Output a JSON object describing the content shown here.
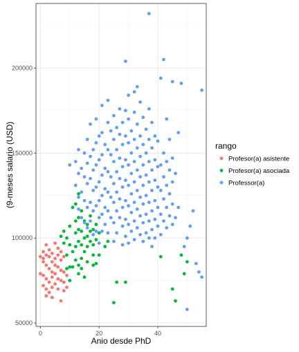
{
  "chart_data": {
    "type": "scatter",
    "title": "",
    "xlabel": "Anio desde PhD",
    "ylabel": "(9-meses salario (USD)",
    "xlim": [
      -1.5,
      56.5
    ],
    "ylim": [
      48000,
      238000
    ],
    "x_ticks": [
      0,
      20,
      40
    ],
    "y_ticks": [
      50000,
      100000,
      150000,
      200000
    ],
    "y_tick_labels": [
      "50000",
      "100000",
      "150000",
      "200000"
    ],
    "grid": true,
    "legend_title": "rango",
    "legend_position": "right",
    "series": [
      {
        "name": "Profesor(a) asistente",
        "color": "#F8766D",
        "points": [
          [
            0,
            79000
          ],
          [
            0,
            89000
          ],
          [
            1,
            92000
          ],
          [
            1,
            88000
          ],
          [
            1,
            86000
          ],
          [
            1,
            78000
          ],
          [
            1,
            72000
          ],
          [
            2,
            96000
          ],
          [
            2,
            90000
          ],
          [
            2,
            84000
          ],
          [
            2,
            76000
          ],
          [
            2,
            70000
          ],
          [
            2,
            66000
          ],
          [
            3,
            93000
          ],
          [
            3,
            89000
          ],
          [
            3,
            82000
          ],
          [
            3,
            74000
          ],
          [
            3,
            68000
          ],
          [
            4,
            91000
          ],
          [
            4,
            86000
          ],
          [
            4,
            80000
          ],
          [
            4,
            77000
          ],
          [
            4,
            71000
          ],
          [
            4,
            65000
          ],
          [
            5,
            97000
          ],
          [
            5,
            88000
          ],
          [
            5,
            84000
          ],
          [
            5,
            79000
          ],
          [
            5,
            73000
          ],
          [
            6,
            94000
          ],
          [
            6,
            90000
          ],
          [
            6,
            83000
          ],
          [
            6,
            76000
          ],
          [
            6,
            70000
          ],
          [
            7,
            92000
          ],
          [
            7,
            87000
          ],
          [
            7,
            81000
          ],
          [
            7,
            75000
          ],
          [
            7,
            63000
          ],
          [
            8,
            89000
          ],
          [
            8,
            80000
          ],
          [
            8,
            74000
          ],
          [
            8,
            69000
          ],
          [
            9,
            78000
          ],
          [
            9,
            71000
          ]
        ]
      },
      {
        "name": "Profesor(a) asociada",
        "color": "#00BA38",
        "points": [
          [
            7,
            101000
          ],
          [
            8,
            104000
          ],
          [
            8,
            97000
          ],
          [
            9,
            100000
          ],
          [
            9,
            90000
          ],
          [
            9,
            82000
          ],
          [
            10,
            107000
          ],
          [
            10,
            96000
          ],
          [
            10,
            83000
          ],
          [
            10,
            75000
          ],
          [
            11,
            118000
          ],
          [
            11,
            92000
          ],
          [
            11,
            83000
          ],
          [
            12,
            120000
          ],
          [
            12,
            110000
          ],
          [
            12,
            103000
          ],
          [
            12,
            95000
          ],
          [
            12,
            87000
          ],
          [
            13,
            126000
          ],
          [
            13,
            112000
          ],
          [
            13,
            105000
          ],
          [
            13,
            98000
          ],
          [
            13,
            84000
          ],
          [
            13,
            79000
          ],
          [
            14,
            116000
          ],
          [
            14,
            104000
          ],
          [
            14,
            96000
          ],
          [
            14,
            88000
          ],
          [
            14,
            82000
          ],
          [
            15,
            110000
          ],
          [
            15,
            100000
          ],
          [
            15,
            92000
          ],
          [
            15,
            77000
          ],
          [
            16,
            108000
          ],
          [
            16,
            101000
          ],
          [
            16,
            95000
          ],
          [
            16,
            86000
          ],
          [
            17,
            113000
          ],
          [
            17,
            104000
          ],
          [
            17,
            98000
          ],
          [
            18,
            105000
          ],
          [
            18,
            96000
          ],
          [
            18,
            90000
          ],
          [
            18,
            84000
          ],
          [
            19,
            108000
          ],
          [
            19,
            99000
          ],
          [
            19,
            85000
          ],
          [
            20,
            103000
          ],
          [
            20,
            90000
          ],
          [
            22,
            95000
          ],
          [
            23,
            98000
          ],
          [
            25,
            62000
          ],
          [
            26,
            74000
          ],
          [
            29,
            74000
          ],
          [
            41,
            89000
          ],
          [
            45,
            70000
          ],
          [
            46,
            63000
          ],
          [
            48,
            90000
          ],
          [
            49,
            79000
          ],
          [
            50,
            86000
          ]
        ]
      },
      {
        "name": "Professor(a)",
        "color": "#619CFF",
        "points": [
          [
            10,
            143000
          ],
          [
            12,
            145000
          ],
          [
            12,
            131000
          ],
          [
            13,
            152000
          ],
          [
            13,
            138000
          ],
          [
            13,
            124000
          ],
          [
            13,
            117000
          ],
          [
            14,
            141000
          ],
          [
            14,
            127000
          ],
          [
            14,
            112000
          ],
          [
            15,
            150000
          ],
          [
            15,
            136000
          ],
          [
            15,
            122000
          ],
          [
            15,
            109000
          ],
          [
            16,
            158000
          ],
          [
            16,
            144000
          ],
          [
            16,
            132000
          ],
          [
            16,
            118000
          ],
          [
            16,
            106000
          ],
          [
            17,
            167000
          ],
          [
            17,
            148000
          ],
          [
            17,
            135000
          ],
          [
            17,
            121000
          ],
          [
            17,
            110000
          ],
          [
            18,
            152000
          ],
          [
            18,
            140000
          ],
          [
            18,
            128000
          ],
          [
            18,
            116000
          ],
          [
            18,
            102000
          ],
          [
            19,
            170000
          ],
          [
            19,
            156000
          ],
          [
            19,
            143000
          ],
          [
            19,
            130000
          ],
          [
            19,
            119000
          ],
          [
            19,
            104000
          ],
          [
            20,
            160000
          ],
          [
            20,
            146000
          ],
          [
            20,
            133000
          ],
          [
            20,
            122000
          ],
          [
            20,
            112000
          ],
          [
            20,
            97000
          ],
          [
            21,
            178000
          ],
          [
            21,
            162000
          ],
          [
            21,
            149000
          ],
          [
            21,
            137000
          ],
          [
            21,
            125000
          ],
          [
            21,
            114000
          ],
          [
            21,
            104000
          ],
          [
            22,
            155000
          ],
          [
            22,
            141000
          ],
          [
            22,
            129000
          ],
          [
            22,
            118000
          ],
          [
            22,
            108000
          ],
          [
            23,
            181000
          ],
          [
            23,
            168000
          ],
          [
            23,
            152000
          ],
          [
            23,
            139000
          ],
          [
            23,
            127000
          ],
          [
            23,
            116000
          ],
          [
            23,
            103000
          ],
          [
            24,
            163000
          ],
          [
            24,
            149000
          ],
          [
            24,
            136000
          ],
          [
            24,
            124000
          ],
          [
            24,
            112000
          ],
          [
            25,
            172000
          ],
          [
            25,
            158000
          ],
          [
            25,
            145000
          ],
          [
            25,
            132000
          ],
          [
            25,
            121000
          ],
          [
            25,
            109000
          ],
          [
            25,
            98000
          ],
          [
            26,
            165000
          ],
          [
            26,
            152000
          ],
          [
            26,
            139000
          ],
          [
            26,
            127000
          ],
          [
            26,
            116000
          ],
          [
            26,
            103000
          ],
          [
            27,
            176000
          ],
          [
            27,
            161000
          ],
          [
            27,
            147000
          ],
          [
            27,
            135000
          ],
          [
            27,
            123000
          ],
          [
            27,
            112000
          ],
          [
            28,
            168000
          ],
          [
            28,
            155000
          ],
          [
            28,
            142000
          ],
          [
            28,
            130000
          ],
          [
            28,
            118000
          ],
          [
            28,
            107000
          ],
          [
            28,
            96000
          ],
          [
            29,
            204000
          ],
          [
            29,
            175000
          ],
          [
            29,
            160000
          ],
          [
            29,
            146000
          ],
          [
            29,
            134000
          ],
          [
            29,
            122000
          ],
          [
            29,
            111000
          ],
          [
            29,
            101000
          ],
          [
            30,
            184000
          ],
          [
            30,
            170000
          ],
          [
            30,
            156000
          ],
          [
            30,
            143000
          ],
          [
            30,
            131000
          ],
          [
            30,
            119000
          ],
          [
            30,
            108000
          ],
          [
            30,
            97000
          ],
          [
            31,
            163000
          ],
          [
            31,
            150000
          ],
          [
            31,
            138000
          ],
          [
            31,
            126000
          ],
          [
            31,
            115000
          ],
          [
            31,
            104000
          ],
          [
            32,
            186000
          ],
          [
            32,
            174000
          ],
          [
            32,
            158000
          ],
          [
            32,
            145000
          ],
          [
            32,
            133000
          ],
          [
            32,
            121000
          ],
          [
            32,
            110000
          ],
          [
            32,
            99000
          ],
          [
            33,
            189000
          ],
          [
            33,
            167000
          ],
          [
            33,
            153000
          ],
          [
            33,
            140000
          ],
          [
            33,
            128000
          ],
          [
            33,
            117000
          ],
          [
            33,
            106000
          ],
          [
            34,
            180000
          ],
          [
            34,
            160000
          ],
          [
            34,
            148000
          ],
          [
            34,
            136000
          ],
          [
            34,
            124000
          ],
          [
            34,
            113000
          ],
          [
            34,
            102000
          ],
          [
            35,
            171000
          ],
          [
            35,
            155000
          ],
          [
            35,
            143000
          ],
          [
            35,
            131000
          ],
          [
            35,
            120000
          ],
          [
            35,
            109000
          ],
          [
            35,
            98000
          ],
          [
            36,
            164000
          ],
          [
            36,
            150000
          ],
          [
            36,
            137000
          ],
          [
            36,
            125000
          ],
          [
            36,
            114000
          ],
          [
            36,
            103000
          ],
          [
            37,
            232000
          ],
          [
            37,
            176000
          ],
          [
            37,
            158000
          ],
          [
            37,
            145000
          ],
          [
            37,
            133000
          ],
          [
            37,
            121000
          ],
          [
            37,
            110000
          ],
          [
            37,
            100000
          ],
          [
            38,
            168000
          ],
          [
            38,
            153000
          ],
          [
            38,
            140000
          ],
          [
            38,
            128000
          ],
          [
            38,
            116000
          ],
          [
            38,
            105000
          ],
          [
            38,
            95000
          ],
          [
            39,
            160000
          ],
          [
            39,
            146000
          ],
          [
            39,
            134000
          ],
          [
            39,
            122000
          ],
          [
            39,
            111000
          ],
          [
            39,
            100000
          ],
          [
            40,
            157000
          ],
          [
            40,
            142000
          ],
          [
            40,
            130000
          ],
          [
            40,
            118000
          ],
          [
            40,
            107000
          ],
          [
            41,
            194000
          ],
          [
            41,
            143000
          ],
          [
            41,
            128000
          ],
          [
            41,
            114000
          ],
          [
            41,
            102000
          ],
          [
            42,
            205000
          ],
          [
            42,
            150000
          ],
          [
            42,
            136000
          ],
          [
            42,
            123000
          ],
          [
            42,
            110000
          ],
          [
            43,
            170000
          ],
          [
            43,
            145000
          ],
          [
            43,
            131000
          ],
          [
            43,
            118000
          ],
          [
            43,
            106000
          ],
          [
            44,
            158000
          ],
          [
            44,
            140000
          ],
          [
            44,
            126000
          ],
          [
            44,
            113000
          ],
          [
            45,
            192000
          ],
          [
            45,
            147000
          ],
          [
            45,
            133000
          ],
          [
            45,
            120000
          ],
          [
            45,
            108000
          ],
          [
            46,
            138000
          ],
          [
            46,
            112000
          ],
          [
            47,
            162000
          ],
          [
            47,
            118000
          ],
          [
            48,
            191000
          ],
          [
            49,
            95000
          ],
          [
            50,
            100000
          ],
          [
            50,
            58000
          ],
          [
            51,
            107000
          ],
          [
            52,
            116000
          ],
          [
            53,
            85000
          ],
          [
            54,
            80000
          ],
          [
            55,
            77000
          ],
          [
            55,
            187000
          ]
        ]
      }
    ]
  }
}
